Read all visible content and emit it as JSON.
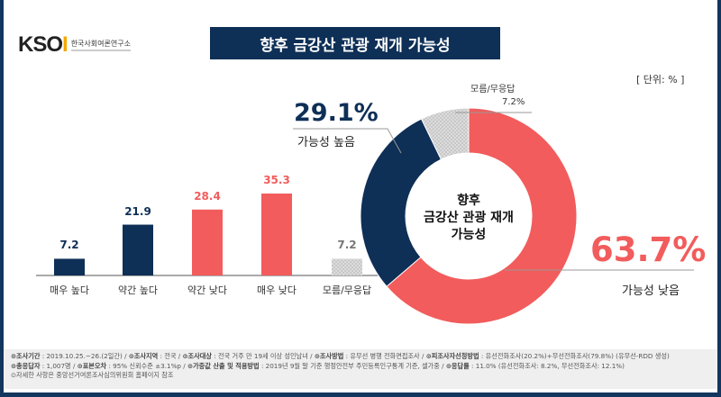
{
  "logo": {
    "brand": "KSOI",
    "subtitle": "한국사회여론연구소"
  },
  "title": "향후 금강산 관광 재개 가능성",
  "unit": "[ 단위: % ]",
  "chart_data": [
    {
      "type": "bar",
      "categories": [
        "매우 높다",
        "약간 높다",
        "약간 낮다",
        "매우 낮다",
        "모름/무응답"
      ],
      "values": [
        7.2,
        21.9,
        28.4,
        35.3,
        7.2
      ],
      "value_labels": [
        "7.2",
        "21.9",
        "28.4",
        "35.3",
        "7.2"
      ],
      "colors": [
        "#0e2f56",
        "#0e2f56",
        "#f25c5c",
        "#f25c5c",
        "#c8c8c8"
      ],
      "ylim": [
        0,
        40
      ]
    },
    {
      "type": "pie",
      "center_label": [
        "향후",
        "금강산 관광 재개",
        "가능성"
      ],
      "slices": [
        {
          "label": "가능성 낮음",
          "value": 63.7,
          "text": "63.7%",
          "color": "#f25c5c"
        },
        {
          "label": "가능성 높음",
          "value": 29.1,
          "text": "29.1%",
          "color": "#0e2f56"
        },
        {
          "label": "모름/무응답",
          "value": 7.2,
          "text": "7.2%",
          "color": "#c8c8c8"
        }
      ]
    }
  ],
  "footer": {
    "line1": [
      [
        "조사기간",
        "2019.10.25.~26.(2일간)"
      ],
      [
        "조사지역",
        "전국"
      ],
      [
        "조사대상",
        "전국 거주 만 19세 이상 성인남녀"
      ],
      [
        "조사방법",
        "유무선 병행 전화면접조사"
      ],
      [
        "피조사자선정방법",
        "유선전화조사(20.2%)+무선전화조사(79.8%) (유무선-RDD 생성)"
      ]
    ],
    "line2": [
      [
        "총응답자",
        "1,007명"
      ],
      [
        "표본오차",
        "95% 신뢰수준 ±3.1%p"
      ],
      [
        "가중값 산출 및 적용방법",
        "2019년 9월 말 기준 행정안전부 주민등록인구통계 기준, 셀가중"
      ],
      [
        "응답률",
        "11.0% (유선전화조사: 8.2%, 무선전화조사: 12.1%)"
      ]
    ],
    "line3": "자세한 사항은 중앙선거여론조사심의위원회 홈페이지 참조"
  }
}
